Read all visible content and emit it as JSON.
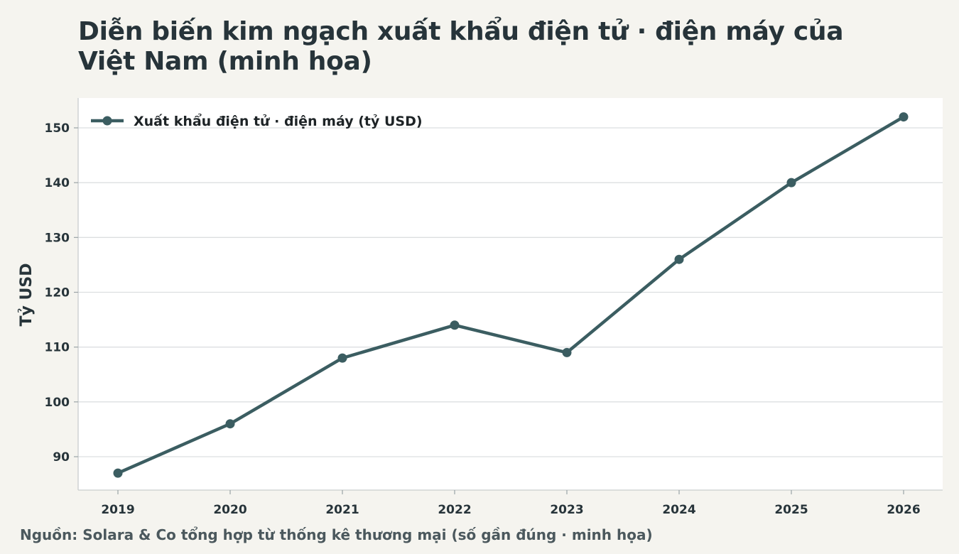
{
  "title": "Diễn biến kim ngạch xuất khẩu điện tử · điện máy của Việt Nam (minh họa)",
  "source": "Nguồn: Solara & Co tổng hợp từ thống kê thương mại (số gần đúng · minh họa)",
  "chart_data": {
    "type": "line",
    "title": "Diễn biến kim ngạch xuất khẩu điện tử · điện máy của Việt Nam (minh họa)",
    "xlabel": "",
    "ylabel": "Tỷ USD",
    "x": [
      "2019",
      "2020",
      "2021",
      "2022",
      "2023",
      "2024",
      "2025",
      "2026"
    ],
    "series": [
      {
        "name": "Xuất khẩu điện tử · điện máy (tỷ USD)",
        "color": "#3b5d61",
        "values": [
          87,
          96,
          108,
          114,
          109,
          126,
          140,
          152
        ]
      }
    ],
    "yticks": [
      90,
      100,
      110,
      120,
      130,
      140,
      150
    ],
    "ylim": [
      84,
      155
    ],
    "grid": "horizontal",
    "legend": "top-left",
    "background": "#ffffff",
    "page_background": "#f5f4ef",
    "grid_color": "#dcdfe0"
  }
}
